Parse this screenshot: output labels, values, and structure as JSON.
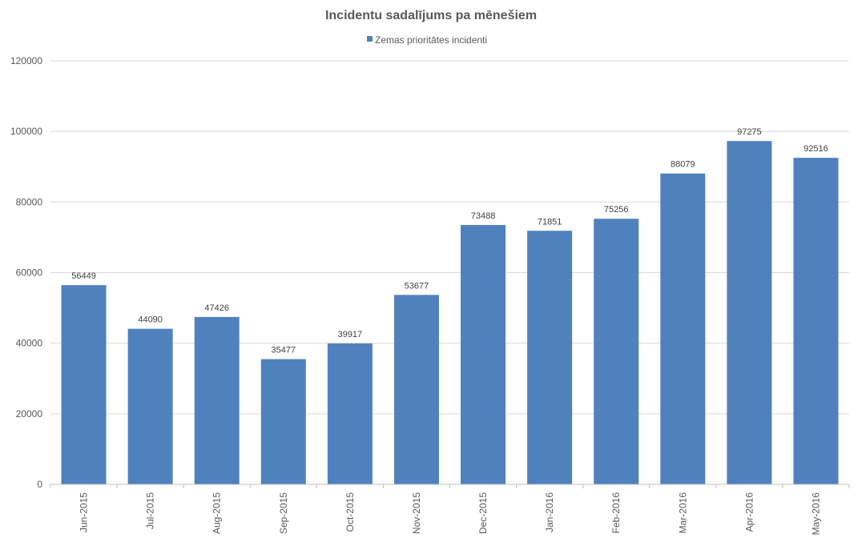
{
  "chart_data": {
    "type": "bar",
    "title": "Incidentu sadalījums pa mēnešiem",
    "xlabel": "",
    "ylabel": "",
    "categories": [
      "Jun-2015",
      "Jul-2015",
      "Aug-2015",
      "Sep-2015",
      "Oct-2015",
      "Nov-2015",
      "Dec-2015",
      "Jan-2016",
      "Feb-2016",
      "Mar-2016",
      "Apr-2016",
      "May-2016"
    ],
    "series": [
      {
        "name": "Zemas prioritātes incidenti",
        "values": [
          56449,
          44090,
          47426,
          35477,
          39917,
          53677,
          73488,
          71851,
          75256,
          88079,
          97275,
          92516
        ],
        "color": "#4f81bd"
      }
    ],
    "ylim": [
      0,
      120000
    ],
    "yticks": [
      0,
      20000,
      40000,
      60000,
      80000,
      100000,
      120000
    ],
    "grid": true,
    "legend": "top-center"
  }
}
